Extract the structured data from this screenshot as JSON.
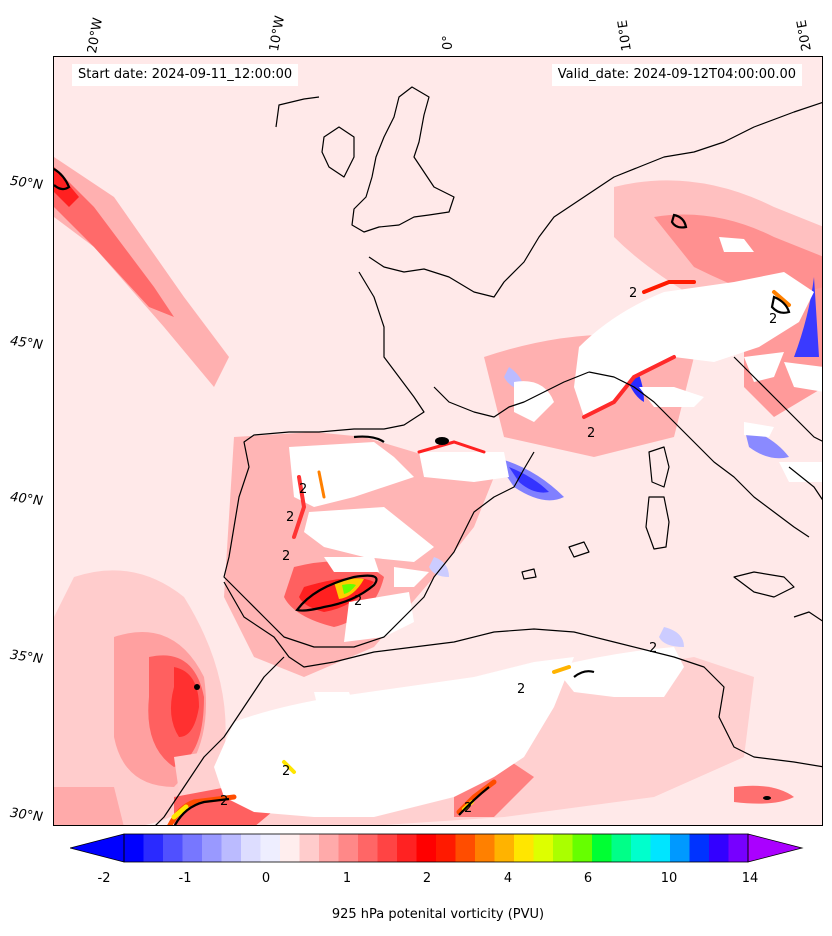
{
  "header": {
    "start_date": "Start date: 2024-09-11_12:00:00",
    "valid_date": "Valid_date: 2024-09-12T04:00:00.00"
  },
  "map": {
    "longitude_labels": [
      "20°W",
      "10°W",
      "0°",
      "10°E",
      "20°E"
    ],
    "latitude_labels": [
      "50°N",
      "45°N",
      "40°N",
      "35°N",
      "30°N"
    ],
    "contour_label": "2",
    "colors": {
      "background_pv": "#ffe9e9",
      "mask": "#ffffff",
      "coastline": "#000000"
    }
  },
  "colorbar": {
    "label": "925 hPa potenital vorticity (PVU)",
    "ticks": [
      "-2",
      "-1",
      "0",
      "1",
      "2",
      "4",
      "6",
      "10",
      "14"
    ],
    "colors": [
      "#0000ff",
      "#2a2aff",
      "#5050ff",
      "#7777ff",
      "#9999ff",
      "#bbbbff",
      "#ddddff",
      "#eeeeff",
      "#ffeeee",
      "#ffcccc",
      "#ffaaaa",
      "#ff8888",
      "#ff6666",
      "#ff4444",
      "#ff2222",
      "#ff0000",
      "#ff1a00",
      "#ff4d00",
      "#ff8000",
      "#ffb300",
      "#ffe600",
      "#ddff00",
      "#aaff00",
      "#66ff00",
      "#00ff33",
      "#00ff88",
      "#00ffcc",
      "#00e5ff",
      "#0099ff",
      "#0033ff",
      "#3300ff",
      "#7700ff"
    ],
    "under_color": "#0000ff",
    "over_color": "#aa00ff"
  }
}
